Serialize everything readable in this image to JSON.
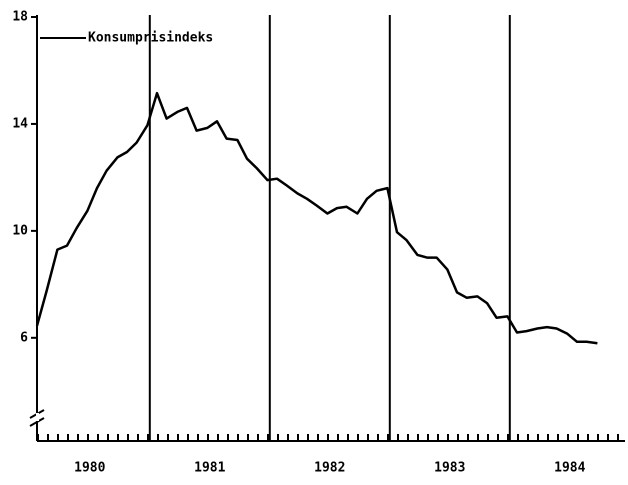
{
  "chart_data": {
    "type": "line",
    "x": [
      1980.06,
      1980.14,
      1980.23,
      1980.31,
      1980.39,
      1980.48,
      1980.56,
      1980.64,
      1980.73,
      1980.81,
      1980.89,
      1980.98,
      1981.06,
      1981.14,
      1981.23,
      1981.31,
      1981.39,
      1981.48,
      1981.56,
      1981.64,
      1981.73,
      1981.81,
      1981.89,
      1981.98,
      1982.06,
      1982.14,
      1982.23,
      1982.31,
      1982.39,
      1982.48,
      1982.56,
      1982.64,
      1982.73,
      1982.81,
      1982.89,
      1982.98,
      1983.06,
      1983.14,
      1983.23,
      1983.31,
      1983.39,
      1983.48,
      1983.56,
      1983.64,
      1983.73,
      1983.81,
      1983.89,
      1983.98,
      1984.06,
      1984.14,
      1984.23,
      1984.31,
      1984.39,
      1984.48,
      1984.56,
      1984.64,
      1984.73
    ],
    "series": [
      {
        "name": "Konsumprisindeks",
        "color": "#000000",
        "values": [
          6.45,
          7.75,
          9.3,
          9.45,
          10.1,
          10.75,
          11.6,
          12.25,
          12.75,
          12.95,
          13.3,
          13.95,
          15.15,
          14.2,
          14.45,
          14.6,
          13.75,
          13.85,
          14.1,
          13.45,
          13.4,
          12.7,
          12.35,
          11.9,
          11.95,
          11.7,
          11.4,
          11.2,
          10.95,
          10.65,
          10.85,
          10.9,
          10.65,
          11.2,
          11.5,
          11.6,
          9.95,
          9.65,
          9.1,
          9.0,
          9.0,
          8.55,
          7.7,
          7.5,
          7.55,
          7.3,
          6.75,
          6.8,
          6.2,
          6.25,
          6.35,
          6.4,
          6.35,
          6.15,
          5.85,
          5.85,
          5.8
        ]
      }
    ],
    "xlim": [
      1980.06,
      1984.96
    ],
    "xticks": [
      {
        "value": 1980.5,
        "label": "1980"
      },
      {
        "value": 1981.5,
        "label": "1981"
      },
      {
        "value": 1982.5,
        "label": "1982"
      },
      {
        "value": 1983.5,
        "label": "1983"
      },
      {
        "value": 1984.5,
        "label": "1984"
      }
    ],
    "vlines": [
      1981,
      1982,
      1983,
      1984
    ],
    "ylim": [
      2.14,
      18
    ],
    "yticks": [
      6,
      10,
      14,
      18
    ],
    "legend": "upper left"
  }
}
